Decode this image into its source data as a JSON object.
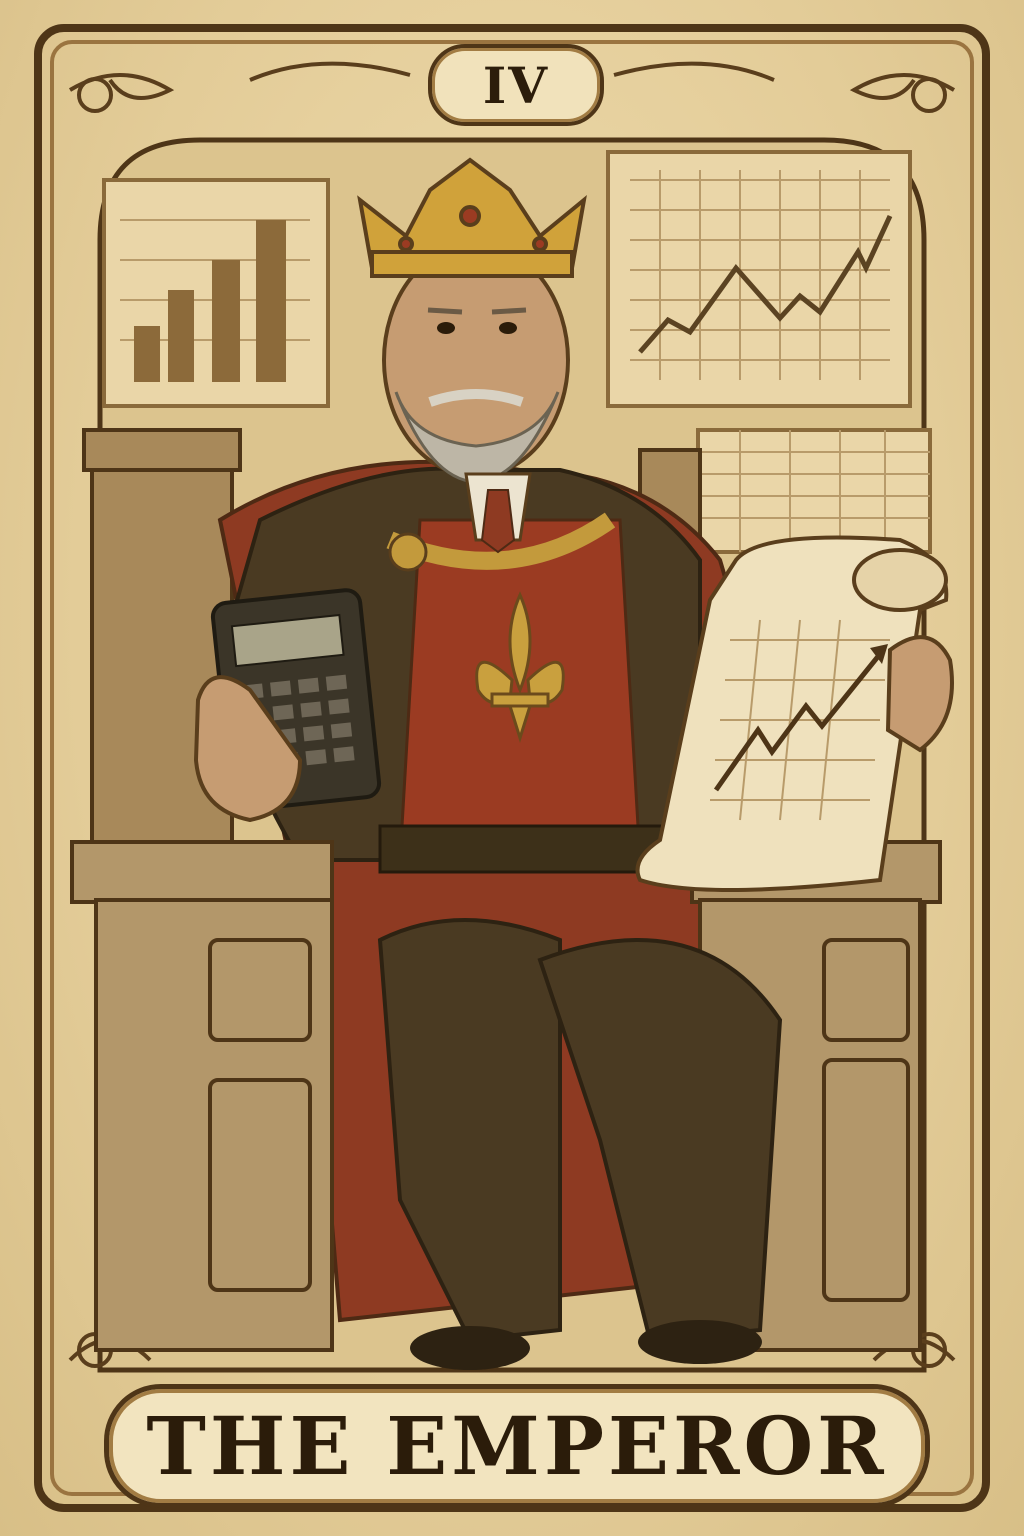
{
  "card": {
    "numeral": "IV",
    "title": "THE EMPEROR"
  },
  "icons": [
    "crown-icon",
    "fleur-de-lis-icon",
    "calculator-icon",
    "scroll-icon",
    "bar-chart-icon",
    "line-chart-icon",
    "spreadsheet-icon"
  ],
  "colors": {
    "parchment": "#e6d3a3",
    "border_brown": "#4e3517",
    "gold": "#c39a3c",
    "robe_red": "#9b3b22",
    "coat_brown": "#4a3a22"
  }
}
